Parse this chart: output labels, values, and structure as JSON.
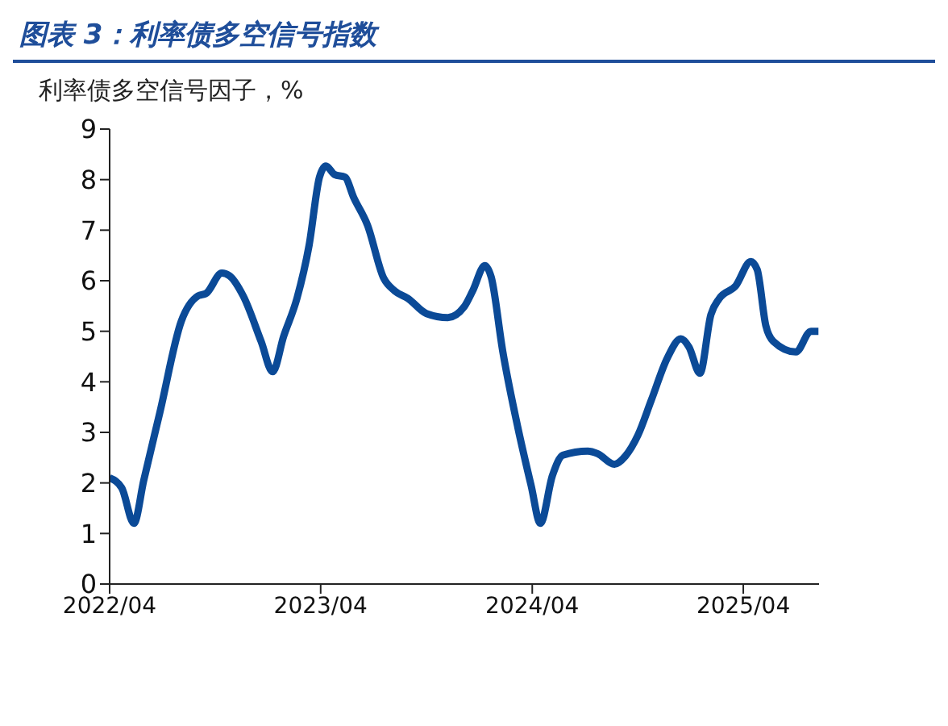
{
  "chart_data": {
    "type": "line",
    "title": "图表 3：利率债多空信号指数",
    "ylabel": "利率债多空信号因子，%",
    "x": [
      "2022-04-01",
      "2022-04-22",
      "2022-05-13",
      "2022-05-30",
      "2022-06-27",
      "2022-08-03",
      "2022-09-01",
      "2022-09-15",
      "2022-10-12",
      "2022-10-25",
      "2022-11-18",
      "2022-12-19",
      "2023-01-08",
      "2023-01-27",
      "2023-02-19",
      "2023-03-12",
      "2023-03-30",
      "2023-04-10",
      "2023-04-25",
      "2023-05-13",
      "2023-05-28",
      "2023-06-21",
      "2023-07-19",
      "2023-08-07",
      "2023-08-30",
      "2023-10-01",
      "2023-11-07",
      "2023-12-05",
      "2023-12-20",
      "2024-01-10",
      "2024-01-21",
      "2024-02-10",
      "2024-03-07",
      "2024-03-30",
      "2024-04-15",
      "2024-05-06",
      "2024-05-24",
      "2024-07-06",
      "2024-07-23",
      "2024-08-21",
      "2024-09-09",
      "2024-10-01",
      "2024-10-24",
      "2024-11-21",
      "2024-12-14",
      "2024-12-28",
      "2025-01-16",
      "2025-02-04",
      "2025-02-18",
      "2025-03-19",
      "2025-04-14",
      "2025-04-25",
      "2025-05-10",
      "2025-05-23",
      "2025-07-01",
      "2025-07-27",
      "2025-08-09"
    ],
    "series": [
      {
        "color": "#0b4a97",
        "values": [
          2.1,
          1.9,
          1.2,
          2.05,
          3.4,
          5.2,
          5.7,
          5.75,
          6.15,
          6.1,
          5.7,
          4.8,
          4.2,
          4.9,
          5.65,
          6.7,
          8.05,
          8.27,
          8.1,
          8.05,
          7.65,
          7.1,
          6.05,
          5.8,
          5.65,
          5.35,
          5.27,
          5.48,
          5.8,
          6.3,
          6.07,
          4.6,
          3.1,
          1.95,
          1.2,
          2.15,
          2.55,
          2.63,
          2.58,
          2.37,
          2.53,
          2.95,
          3.64,
          4.48,
          4.85,
          4.69,
          4.17,
          5.33,
          5.64,
          5.9,
          6.38,
          6.22,
          5.11,
          4.8,
          4.59,
          5.0,
          5.0
        ]
      }
    ],
    "xlim": [
      "2022-04-01",
      "2025-08-10"
    ],
    "xticks": [
      {
        "value": "2022-04-01",
        "label": "2022/04"
      },
      {
        "value": "2023-04-01",
        "label": "2023/04"
      },
      {
        "value": "2024-04-01",
        "label": "2024/04"
      },
      {
        "value": "2025-04-01",
        "label": "2025/04"
      }
    ],
    "ylim": [
      0,
      9
    ],
    "yticks": [
      0,
      1,
      2,
      3,
      4,
      5,
      6,
      7,
      8,
      9
    ],
    "grid": false,
    "legend": false,
    "marker": "none",
    "line_style": "solid"
  }
}
